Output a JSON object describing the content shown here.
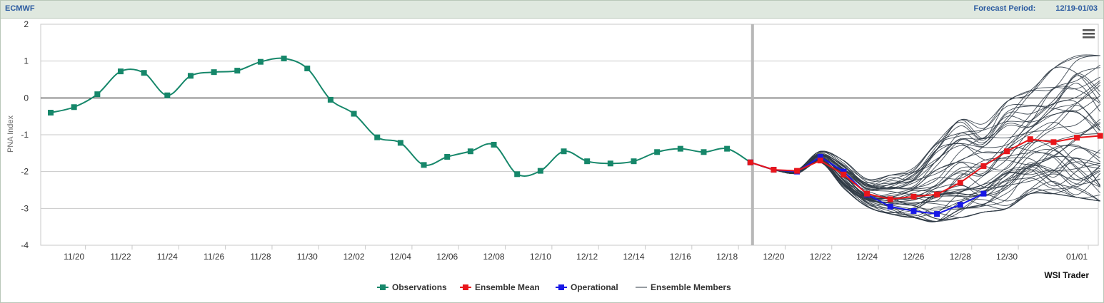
{
  "header": {
    "model": "ECMWF",
    "forecast_label": "Forecast Period:",
    "forecast_range": "12/19-01/03"
  },
  "menu_icon": "hamburger-menu-icon",
  "credit": "WSI Trader",
  "colors": {
    "observations": "#16876a",
    "ensemble_mean": "#e8161b",
    "operational": "#1717e6",
    "ensemble_members": "#2f3a45",
    "divider": "#b7b7b7"
  },
  "chart_data": {
    "type": "line",
    "title": "",
    "ylabel": "PNA Index",
    "xlabel": "",
    "ylim": [
      -4,
      2
    ],
    "yticks": [
      "2",
      "1",
      "0",
      "-1",
      "-2",
      "-3",
      "-4"
    ],
    "x_tick_labels": [
      "11/20",
      "11/22",
      "11/24",
      "11/26",
      "11/28",
      "11/30",
      "12/02",
      "12/04",
      "12/06",
      "12/08",
      "12/10",
      "12/12",
      "12/14",
      "12/16",
      "12/18",
      "12/20",
      "12/22",
      "12/24",
      "12/26",
      "12/28",
      "12/30",
      "01/01"
    ],
    "x_start_date": "11/19",
    "forecast_start": "12/19",
    "legend": [
      "Observations",
      "Ensemble Mean",
      "Operational",
      "Ensemble Members"
    ],
    "legend_position": "bottom-center",
    "series": [
      {
        "name": "Observations",
        "start": "11/19",
        "values": [
          -0.4,
          -0.25,
          0.1,
          0.72,
          0.68,
          0.07,
          0.6,
          0.7,
          0.74,
          0.98,
          1.07,
          0.8,
          -0.05,
          -0.43,
          -1.07,
          -1.22,
          -1.82,
          -1.6,
          -1.45,
          -1.27,
          -2.07,
          -1.98,
          -1.45,
          -1.72,
          -1.78,
          -1.72,
          -1.47,
          -1.38,
          -1.47,
          -1.38,
          -1.75
        ]
      },
      {
        "name": "Operational",
        "start": "12/19",
        "values": [
          -1.75,
          -1.95,
          -2.0,
          -1.6,
          -2.0,
          -2.62,
          -2.95,
          -3.07,
          -3.15,
          -2.9,
          -2.6
        ]
      },
      {
        "name": "Ensemble Mean",
        "start": "12/19",
        "values": [
          -1.75,
          -1.95,
          -1.98,
          -1.7,
          -2.08,
          -2.6,
          -2.75,
          -2.68,
          -2.62,
          -2.3,
          -1.85,
          -1.45,
          -1.12,
          -1.2,
          -1.08,
          -1.03
        ]
      }
    ],
    "ensemble_members": {
      "name": "Ensemble Members",
      "start": "12/19",
      "count": 50,
      "range_by_day": [
        [
          -1.75,
          -1.75
        ],
        [
          -1.95,
          -1.95
        ],
        [
          -2.05,
          -1.95
        ],
        [
          -1.75,
          -1.45
        ],
        [
          -2.45,
          -1.7
        ],
        [
          -2.95,
          -2.2
        ],
        [
          -3.15,
          -2.1
        ],
        [
          -3.25,
          -1.9
        ],
        [
          -3.35,
          -1.2
        ],
        [
          -3.25,
          -0.6
        ],
        [
          -3.1,
          -0.7
        ],
        [
          -3.0,
          -0.1
        ],
        [
          -2.6,
          0.2
        ],
        [
          -2.6,
          0.8
        ],
        [
          -2.7,
          1.25
        ],
        [
          -2.8,
          1.15
        ]
      ]
    }
  }
}
